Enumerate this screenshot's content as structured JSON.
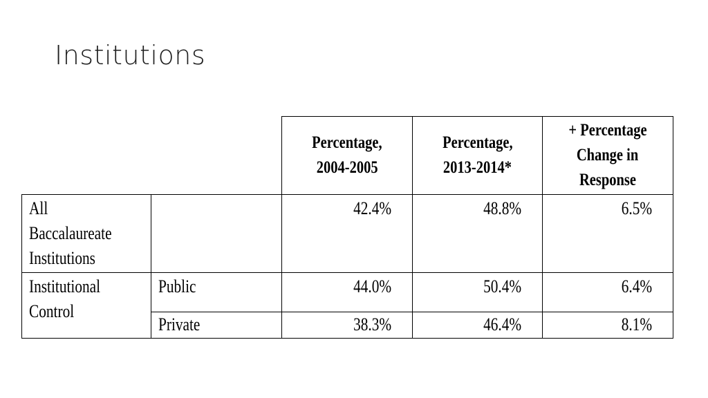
{
  "slide": {
    "title": "Institutions"
  },
  "table": {
    "headers": {
      "col3_line1": "Percentage,",
      "col3_line2": "2004-2005",
      "col4_line1": "Percentage,",
      "col4_line2": "2013-2014*",
      "col5_line1": "+ Percentage",
      "col5_line2": "Change in",
      "col5_line3": "Response"
    },
    "rows": {
      "all": {
        "label_line1": "All",
        "label_line2": "Baccalaureate",
        "label_line3": "Institutions",
        "sub": "",
        "v2004": "42.4%",
        "v2013": "48.8%",
        "change": "6.5%"
      },
      "control": {
        "label_line1": "Institutional",
        "label_line2": "Control"
      },
      "public": {
        "sub": "Public",
        "v2004": "44.0%",
        "v2013": "50.4%",
        "change": "6.4%"
      },
      "private": {
        "sub": "Private",
        "v2004": "38.3%",
        "v2013": "46.4%",
        "change": "8.1%"
      }
    }
  }
}
